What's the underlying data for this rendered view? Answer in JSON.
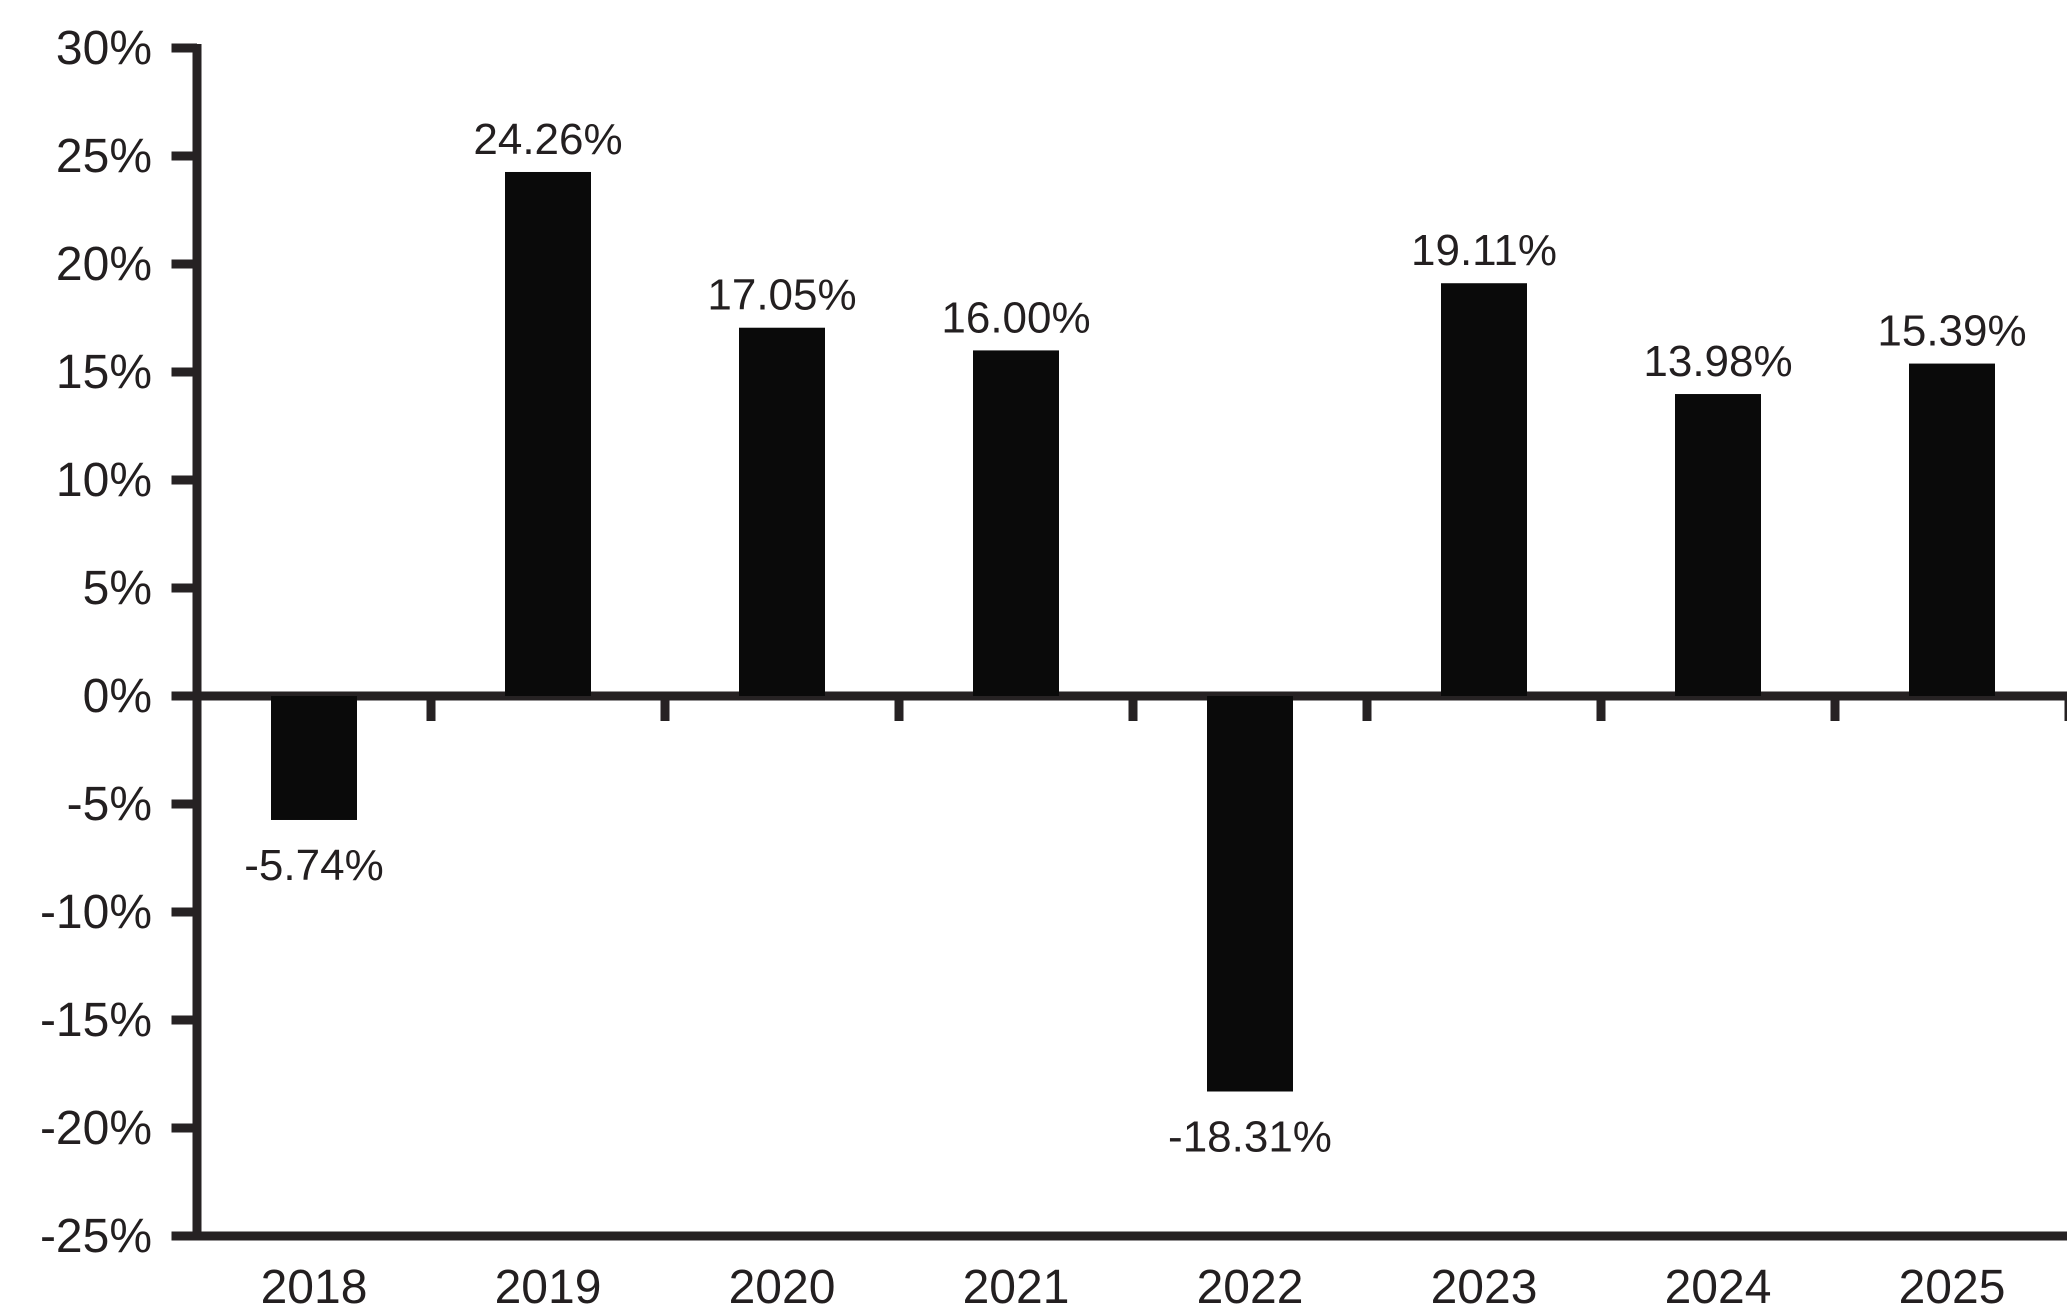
{
  "chart_data": {
    "type": "bar",
    "title": "",
    "xlabel": "",
    "ylabel": "",
    "categories": [
      "2018",
      "2019",
      "2020",
      "2021",
      "2022",
      "2023",
      "2024",
      "2025"
    ],
    "values": [
      -5.74,
      24.26,
      17.05,
      16.0,
      -18.31,
      19.11,
      13.98,
      15.39
    ],
    "bar_labels": [
      "-5.74%",
      "24.26%",
      "17.05%",
      "16.00%",
      "-18.31%",
      "19.11%",
      "13.98%",
      "15.39%"
    ],
    "yticks": [
      30,
      25,
      20,
      15,
      10,
      5,
      0,
      -5,
      -10,
      -15,
      -20,
      -25
    ],
    "ytick_labels": [
      "30%",
      "25%",
      "20%",
      "15%",
      "10%",
      "5%",
      "0%",
      "-5%",
      "-10%",
      "-15%",
      "-20%",
      "-25%"
    ],
    "ylim": [
      -25,
      30
    ],
    "grid": false,
    "legend": "none",
    "bar_color": "#0a0a0a",
    "axis_color": "#262223",
    "text_color": "#231f20"
  }
}
